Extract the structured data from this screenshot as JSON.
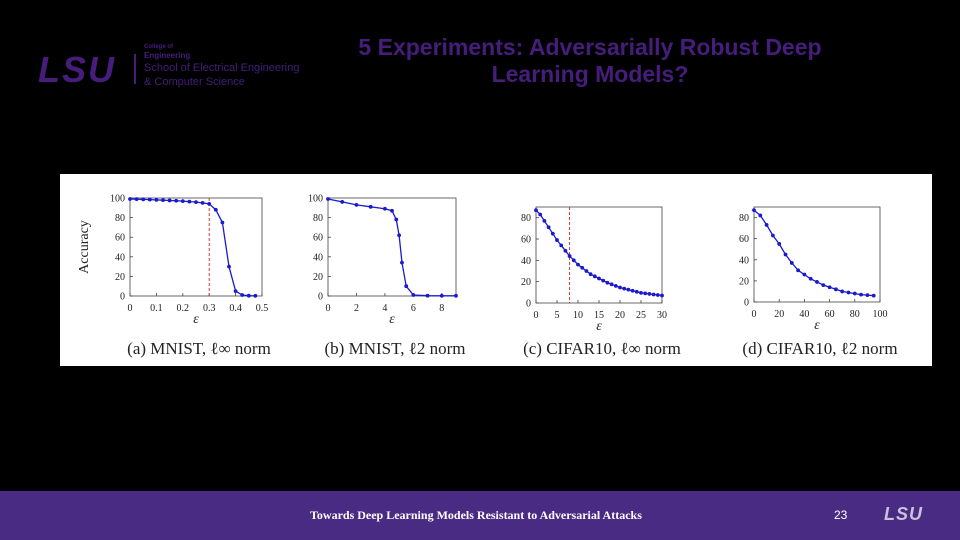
{
  "slide": {
    "title_line1": "5 Experiments: Adversarially Robust Deep",
    "title_line2": "Learning Models?",
    "page_number": "23",
    "footer_text": "Towards Deep Learning Models Resistant to Adversarial Attacks",
    "colors": {
      "brand_purple": "#461d7c",
      "footer_bar": "#4a2b83",
      "series_blue": "#1a1acc",
      "threshold_red": "#cc2222"
    }
  },
  "logo": {
    "mark": "LSU",
    "line1": "College of",
    "line2": "Engineering",
    "line3": "School of Electrical Engineering",
    "line4": "& Computer Science",
    "footer_mark": "LSU"
  },
  "chart_data": [
    {
      "type": "line",
      "caption": "(a) MNIST, ℓ∞ norm",
      "xlabel": "ε",
      "ylabel": "Accuracy",
      "xlim": [
        0,
        0.5
      ],
      "ylim": [
        0,
        100
      ],
      "xticks": [
        0,
        0.1,
        0.2,
        0.3,
        0.4,
        0.5
      ],
      "xtick_labels": [
        "0",
        "0.1",
        "0.2",
        "0.3",
        "0.4",
        "0.5"
      ],
      "yticks": [
        0,
        20,
        40,
        60,
        80,
        100
      ],
      "ytick_labels": [
        "0",
        "20",
        "40",
        "60",
        "80",
        "100"
      ],
      "threshold_x": 0.3,
      "x": [
        0,
        0.025,
        0.05,
        0.075,
        0.1,
        0.125,
        0.15,
        0.175,
        0.2,
        0.225,
        0.25,
        0.275,
        0.3,
        0.325,
        0.35,
        0.375,
        0.4,
        0.425,
        0.45,
        0.475
      ],
      "y": [
        99,
        98.8,
        98.6,
        98.4,
        98.1,
        97.8,
        97.5,
        97.2,
        96.8,
        96.3,
        95.8,
        95,
        94,
        88,
        75,
        30,
        5,
        1,
        0.3,
        0.2
      ]
    },
    {
      "type": "line",
      "caption": "(b) MNIST, ℓ2 norm",
      "xlabel": "ε",
      "ylabel": "",
      "xlim": [
        0,
        9
      ],
      "ylim": [
        0,
        100
      ],
      "xticks": [
        0,
        2,
        4,
        6,
        8
      ],
      "xtick_labels": [
        "0",
        "2",
        "4",
        "6",
        "8"
      ],
      "yticks": [
        0,
        20,
        40,
        60,
        80,
        100
      ],
      "ytick_labels": [
        "0",
        "20",
        "40",
        "60",
        "80",
        "100"
      ],
      "x": [
        0,
        1,
        2,
        3,
        4,
        4.5,
        4.8,
        5,
        5.2,
        5.5,
        6,
        7,
        8,
        9
      ],
      "y": [
        99,
        96,
        93,
        91,
        89,
        87,
        78,
        62,
        34,
        10,
        1,
        0.3,
        0.2,
        0.2
      ]
    },
    {
      "type": "line",
      "caption": "(c) CIFAR10, ℓ∞ norm",
      "xlabel": "ε",
      "ylabel": "",
      "xlim": [
        0,
        30
      ],
      "ylim": [
        0,
        90
      ],
      "xticks": [
        0,
        5,
        10,
        15,
        20,
        25,
        30
      ],
      "xtick_labels": [
        "0",
        "5",
        "10",
        "15",
        "20",
        "25",
        "30"
      ],
      "yticks": [
        0,
        20,
        40,
        60,
        80
      ],
      "ytick_labels": [
        "0",
        "20",
        "40",
        "60",
        "80"
      ],
      "threshold_x": 8,
      "x": [
        0,
        1,
        2,
        3,
        4,
        5,
        6,
        7,
        8,
        9,
        10,
        11,
        12,
        13,
        14,
        15,
        16,
        17,
        18,
        19,
        20,
        21,
        22,
        23,
        24,
        25,
        26,
        27,
        28,
        29,
        30
      ],
      "y": [
        87,
        83,
        77,
        71,
        65,
        59,
        54,
        49,
        44,
        40,
        36,
        33,
        30,
        27,
        25,
        23,
        21,
        19,
        17.5,
        16,
        14.5,
        13.5,
        12.5,
        11.5,
        10.5,
        9.5,
        9,
        8.5,
        8,
        7.5,
        7
      ]
    },
    {
      "type": "line",
      "caption": "(d) CIFAR10, ℓ2 norm",
      "xlabel": "ε",
      "ylabel": "",
      "xlim": [
        0,
        100
      ],
      "ylim": [
        0,
        90
      ],
      "xticks": [
        0,
        20,
        40,
        60,
        80,
        100
      ],
      "xtick_labels": [
        "0",
        "20",
        "40",
        "60",
        "80",
        "100"
      ],
      "yticks": [
        0,
        20,
        40,
        60,
        80
      ],
      "ytick_labels": [
        "0",
        "20",
        "40",
        "60",
        "80"
      ],
      "x": [
        0,
        5,
        10,
        15,
        20,
        25,
        30,
        35,
        40,
        45,
        50,
        55,
        60,
        65,
        70,
        75,
        80,
        85,
        90,
        95
      ],
      "y": [
        87,
        82,
        73,
        63,
        55,
        45,
        37,
        30,
        26,
        22,
        19,
        16,
        14,
        12,
        10,
        9,
        8,
        7,
        6.5,
        6
      ]
    }
  ]
}
